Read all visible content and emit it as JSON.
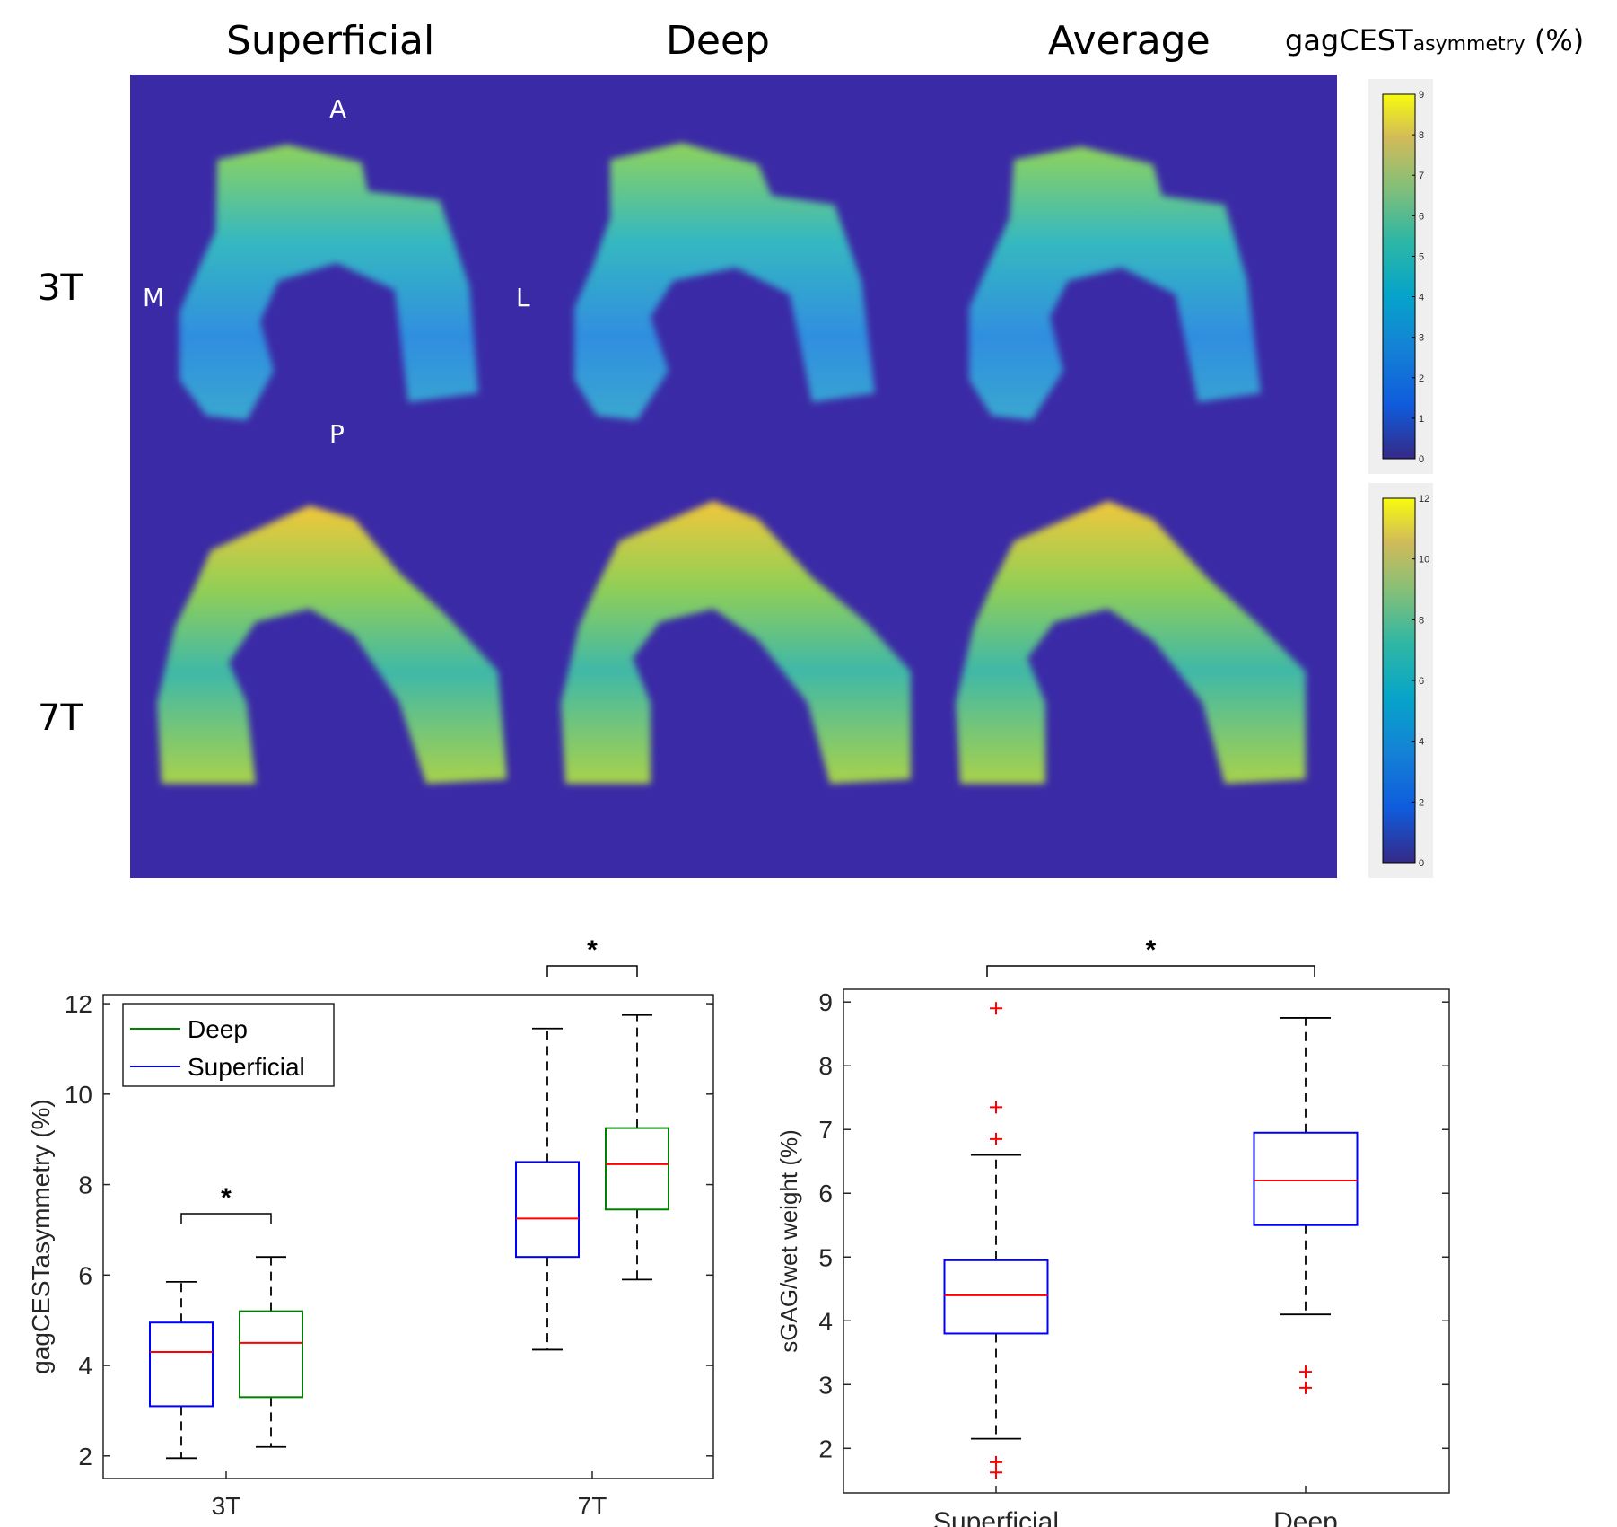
{
  "figure": {
    "column_titles": [
      "Superficial",
      "Deep",
      "Average"
    ],
    "row_labels": [
      "3T",
      "7T"
    ],
    "orientation": {
      "anterior": "A",
      "posterior": "P",
      "medial": "M",
      "lateral": "L"
    },
    "colorbar": {
      "title_main": "gagCEST",
      "title_sub": "asymmetry",
      "title_unit": " (%)",
      "colors": {
        "map_background": "#3b2aa6"
      }
    },
    "colorbar_3t": {
      "ticks": [
        "9",
        "8",
        "7",
        "6",
        "5",
        "4",
        "3",
        "2",
        "1",
        "0"
      ],
      "range": [
        0,
        9
      ]
    },
    "colorbar_7t": {
      "ticks": [
        "12",
        "10",
        "8",
        "6",
        "4",
        "2",
        "0"
      ],
      "range": [
        0,
        12
      ]
    }
  },
  "chart_data": [
    {
      "type": "box",
      "ylabel": "gagCESTasymmetry (%)",
      "categories": [
        "3T",
        "7T"
      ],
      "ylim": [
        1.5,
        12.2
      ],
      "yticks": [
        "2",
        "4",
        "6",
        "8",
        "10",
        "12"
      ],
      "legend": {
        "placement": "top-left",
        "entries": [
          "Deep",
          "Superficial"
        ]
      },
      "series": [
        {
          "name": "Superficial",
          "color": "#0000ff",
          "boxes": [
            {
              "category": "3T",
              "whisker_low": 1.95,
              "q1": 3.1,
              "median": 4.3,
              "q3": 4.95,
              "whisker_high": 5.85
            },
            {
              "category": "7T",
              "whisker_low": 4.35,
              "q1": 6.4,
              "median": 7.25,
              "q3": 8.5,
              "whisker_high": 11.45
            }
          ]
        },
        {
          "name": "Deep",
          "color": "#008000",
          "boxes": [
            {
              "category": "3T",
              "whisker_low": 2.2,
              "q1": 3.3,
              "median": 4.5,
              "q3": 5.2,
              "whisker_high": 6.4
            },
            {
              "category": "7T",
              "whisker_low": 5.9,
              "q1": 7.45,
              "median": 8.45,
              "q3": 9.25,
              "whisker_high": 11.75
            }
          ]
        }
      ],
      "median_color": "#ff0000",
      "significance": [
        {
          "label": "*",
          "between": "3T"
        },
        {
          "label": "*",
          "between": "7T"
        }
      ]
    },
    {
      "type": "box",
      "ylabel": "sGAG/wet weight (%)",
      "categories": [
        "Superficial",
        "Deep"
      ],
      "ylim": [
        1.3,
        9.2
      ],
      "yticks": [
        "2",
        "3",
        "4",
        "5",
        "6",
        "7",
        "8",
        "9"
      ],
      "boxes": [
        {
          "category": "Superficial",
          "whisker_low": 2.15,
          "q1": 3.8,
          "median": 4.4,
          "q3": 4.95,
          "whisker_high": 6.6,
          "outliers": [
            8.9,
            7.35,
            6.85,
            1.78,
            1.62
          ]
        },
        {
          "category": "Deep",
          "whisker_low": 4.1,
          "q1": 5.5,
          "median": 6.2,
          "q3": 6.95,
          "whisker_high": 8.75,
          "outliers": [
            3.2,
            2.95
          ]
        }
      ],
      "box_color": "#0000ff",
      "median_color": "#ff0000",
      "outlier_color": "#ff0000",
      "significance": [
        {
          "label": "*",
          "between": "Superficial-Deep"
        }
      ]
    }
  ]
}
